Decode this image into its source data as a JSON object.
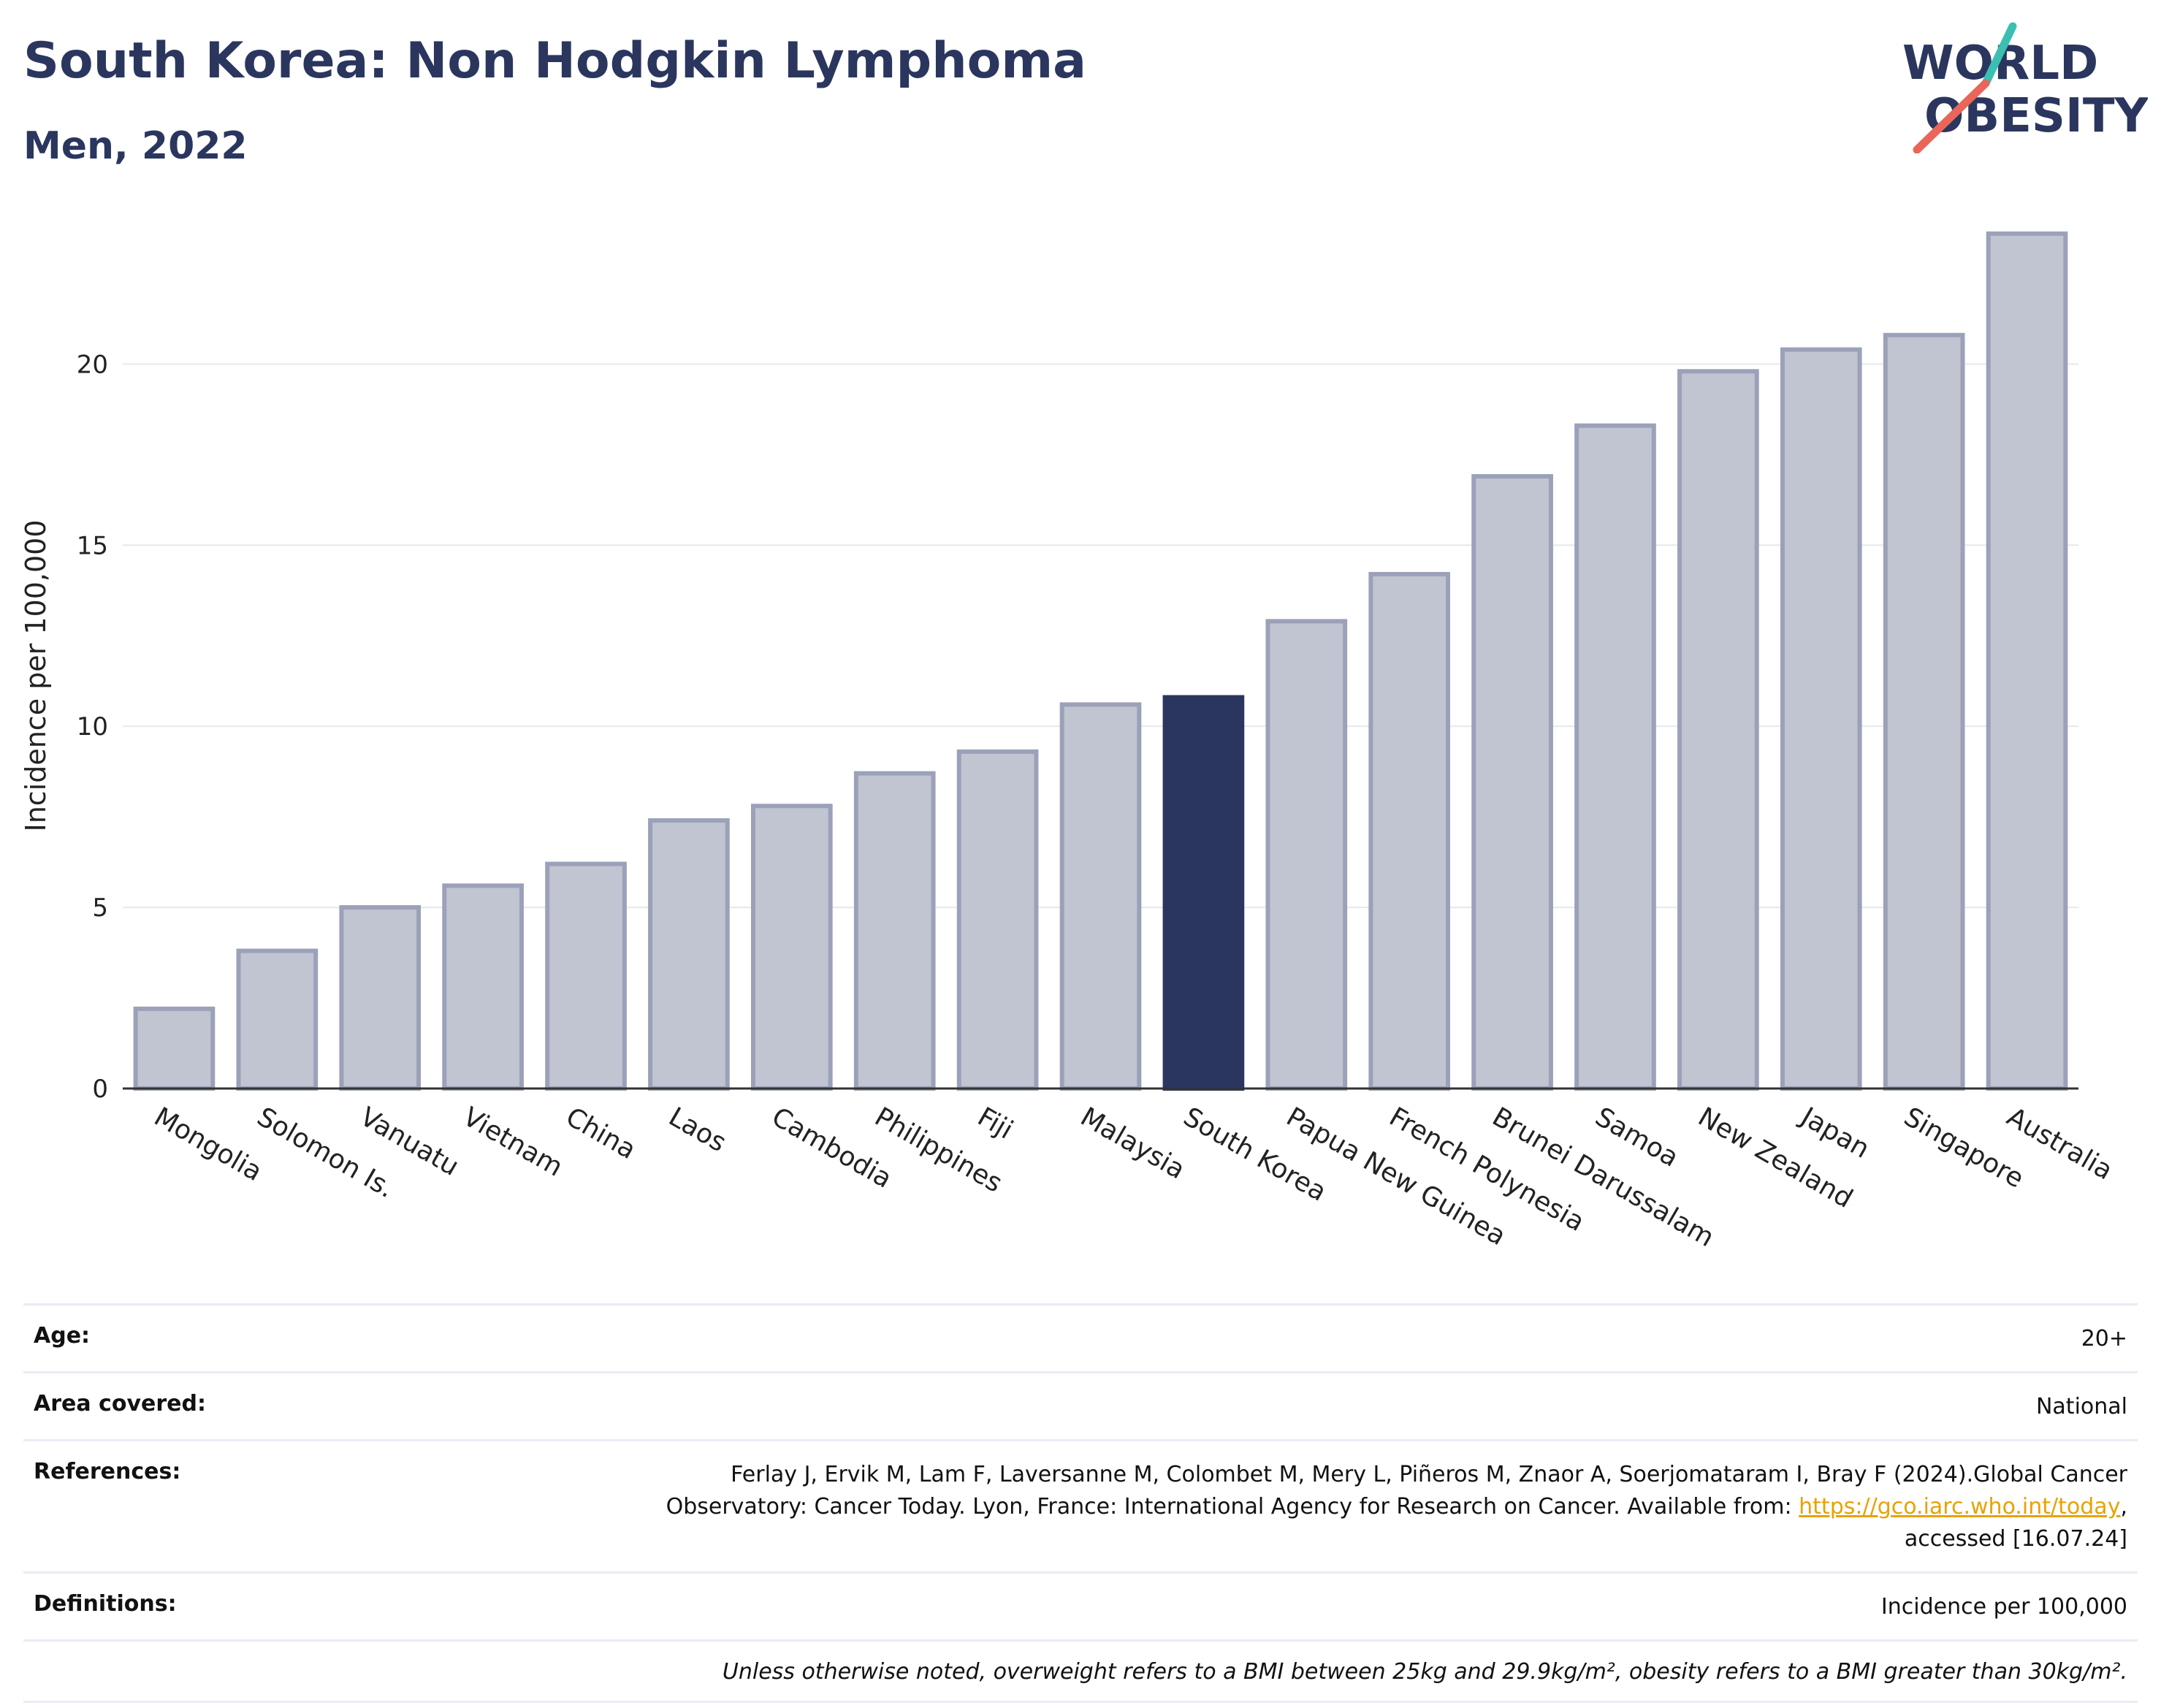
{
  "title": "South Korea: Non Hodgkin Lymphoma",
  "subtitle": "Men, 2022",
  "logo": {
    "line1": "WORLD",
    "line2": "OBESITY",
    "colors": {
      "text": "#2b365f",
      "teal": "#3bbfb2",
      "coral": "#e8665a"
    }
  },
  "chart_data": {
    "type": "bar",
    "ylabel": "Incidence per 100,000",
    "ylim": [
      0,
      24
    ],
    "yticks": [
      0,
      5,
      10,
      15,
      20
    ],
    "grid": true,
    "highlight": "South Korea",
    "colors": {
      "bar": "#c1c4d1",
      "bar_edge": "#9ba1b8",
      "highlight": "#2b365f"
    },
    "categories": [
      "Mongolia",
      "Solomon Is.",
      "Vanuatu",
      "Vietnam",
      "China",
      "Laos",
      "Cambodia",
      "Philippines",
      "Fiji",
      "Malaysia",
      "South Korea",
      "Papua New Guinea",
      "French Polynesia",
      "Brunei Darussalam",
      "Samoa",
      "New Zealand",
      "Japan",
      "Singapore",
      "Australia"
    ],
    "values": [
      2.2,
      3.8,
      5.0,
      5.6,
      6.2,
      7.4,
      7.8,
      8.7,
      9.3,
      10.6,
      10.8,
      12.9,
      14.2,
      16.9,
      18.3,
      19.8,
      20.4,
      20.8,
      23.6
    ]
  },
  "meta": {
    "age_label": "Age:",
    "age_value": "20+",
    "area_label": "Area covered:",
    "area_value": "National",
    "ref_label": "References:",
    "ref_text1": "Ferlay J, Ervik M, Lam F, Laversanne M, Colombet M, Mery L, Piñeros M, Znaor A, Soerjomataram I, Bray F (2024).Global Cancer",
    "ref_text2": "Observatory: Cancer Today. Lyon, France: International Agency for Research on Cancer. Available from: ",
    "ref_link": "https://gco.iarc.who.int/today",
    "ref_text3": "accessed [16.07.24]",
    "def_label": "Definitions:",
    "def_value": "Incidence per 100,000",
    "note": "Unless otherwise noted, overweight refers to a BMI between 25kg and 29.9kg/m², obesity refers to a BMI greater than 30kg/m²."
  }
}
